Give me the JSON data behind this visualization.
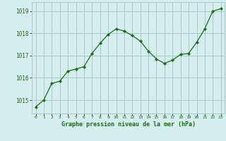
{
  "x": [
    0,
    1,
    2,
    3,
    4,
    5,
    6,
    7,
    8,
    9,
    10,
    11,
    12,
    13,
    14,
    15,
    16,
    17,
    18,
    19,
    20,
    21,
    22,
    23
  ],
  "y": [
    1014.7,
    1015.0,
    1015.75,
    1015.85,
    1016.3,
    1016.4,
    1016.5,
    1017.1,
    1017.55,
    1017.95,
    1018.2,
    1018.1,
    1017.9,
    1017.65,
    1017.2,
    1016.85,
    1016.65,
    1016.8,
    1017.05,
    1017.1,
    1017.6,
    1018.2,
    1019.0,
    1019.1
  ],
  "line_color": "#1a6b1a",
  "marker": "D",
  "marker_size": 2.2,
  "bg_color": "#d4eded",
  "grid_color": "#a8c8c8",
  "title": "Graphe pression niveau de la mer (hPa)",
  "yticks": [
    1015,
    1016,
    1017,
    1018,
    1019
  ],
  "ylim": [
    1014.4,
    1019.4
  ],
  "xlim": [
    -0.5,
    23.5
  ],
  "xtick_labels": [
    "0",
    "1",
    "2",
    "3",
    "4",
    "5",
    "6",
    "7",
    "8",
    "9",
    "10",
    "11",
    "12",
    "13",
    "14",
    "15",
    "16",
    "17",
    "18",
    "19",
    "20",
    "21",
    "22",
    "23"
  ]
}
